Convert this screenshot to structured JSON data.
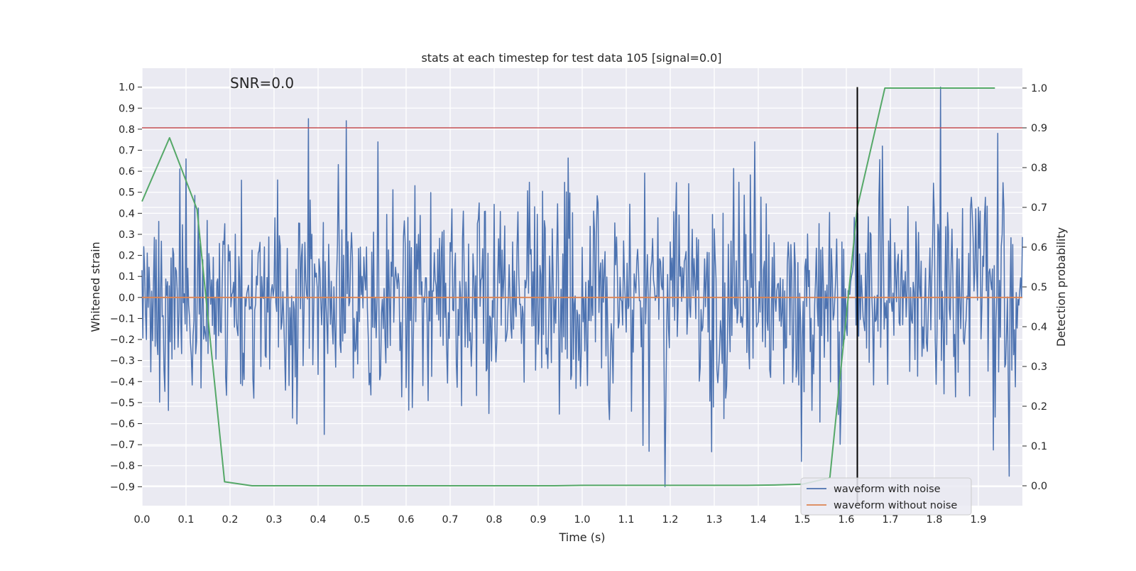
{
  "chart_data": {
    "type": "line",
    "title": "stats at each timestep for test data 105 [signal=0.0]",
    "xlabel": "Time (s)",
    "ylabel_left": "Whitened strain",
    "ylabel_right": "Detection probability",
    "annotation": "SNR=0.0",
    "xlim": [
      0.0,
      2.0
    ],
    "ylim_left": [
      -0.99,
      1.09
    ],
    "ylim_right": [
      -0.05,
      1.05
    ],
    "x_ticks": [
      "0.0",
      "0.1",
      "0.2",
      "0.3",
      "0.4",
      "0.5",
      "0.6",
      "0.7",
      "0.8",
      "0.9",
      "1.0",
      "1.1",
      "1.2",
      "1.3",
      "1.4",
      "1.5",
      "1.6",
      "1.7",
      "1.8",
      "1.9"
    ],
    "y_left_ticks": [
      "1.0",
      "0.9",
      "0.8",
      "0.7",
      "0.6",
      "0.5",
      "0.4",
      "0.3",
      "0.2",
      "0.1",
      "0.0",
      "−0.1",
      "−0.2",
      "−0.3",
      "−0.4",
      "−0.5",
      "−0.6",
      "−0.7",
      "−0.8",
      "−0.9"
    ],
    "y_right_ticks": [
      "1.0",
      "0.9",
      "0.8",
      "0.7",
      "0.6",
      "0.5",
      "0.4",
      "0.3",
      "0.2",
      "0.1",
      "0.0"
    ],
    "grid": true,
    "legend_position": "lower-right",
    "colors": {
      "noisy": "#4c72b0",
      "clean": "#dd8452",
      "probability": "#55a868",
      "threshold": "#c44e52",
      "marker": "#000000",
      "plot_bg": "#eaeaf2",
      "grid": "#ffffff"
    },
    "series": [
      {
        "name": "waveform with noise",
        "kind": "noise",
        "x_range": [
          0.0,
          2.0
        ],
        "amplitude_std": 0.25,
        "extremes": [
          [
            0.379,
            0.85
          ],
          [
            0.465,
            0.84
          ],
          [
            1.188,
            -0.9
          ],
          [
            1.815,
            1.0
          ],
          [
            1.943,
            0.78
          ],
          [
            1.97,
            -0.85
          ]
        ]
      },
      {
        "name": "waveform without noise",
        "x": [
          0.0,
          2.0
        ],
        "y": [
          0.0,
          0.0
        ]
      },
      {
        "name": "",
        "axis": "right",
        "x": [
          0.0,
          0.0625,
          0.125,
          0.1875,
          0.25,
          0.3125,
          0.375,
          0.4375,
          0.5,
          0.5625,
          0.625,
          0.6875,
          0.75,
          0.8125,
          0.875,
          0.9375,
          1.0,
          1.0625,
          1.125,
          1.1875,
          1.25,
          1.3125,
          1.375,
          1.4375,
          1.5,
          1.5625,
          1.625,
          1.6875,
          1.75,
          1.8125,
          1.875,
          1.9375
        ],
        "y": [
          0.715,
          0.875,
          0.695,
          0.01,
          0.0,
          0.0,
          0.0,
          0.0,
          0.0,
          0.0,
          0.0,
          0.0,
          0.0,
          0.0,
          0.0,
          0.0,
          0.001,
          0.001,
          0.001,
          0.001,
          0.001,
          0.001,
          0.001,
          0.002,
          0.004,
          0.02,
          0.7,
          1.0,
          1.0,
          1.0,
          1.0,
          1.0
        ]
      }
    ],
    "threshold_line_right": 0.9,
    "vertical_marker": {
      "x": 1.625,
      "y_range_left": [
        -0.99,
        1.0
      ]
    }
  }
}
